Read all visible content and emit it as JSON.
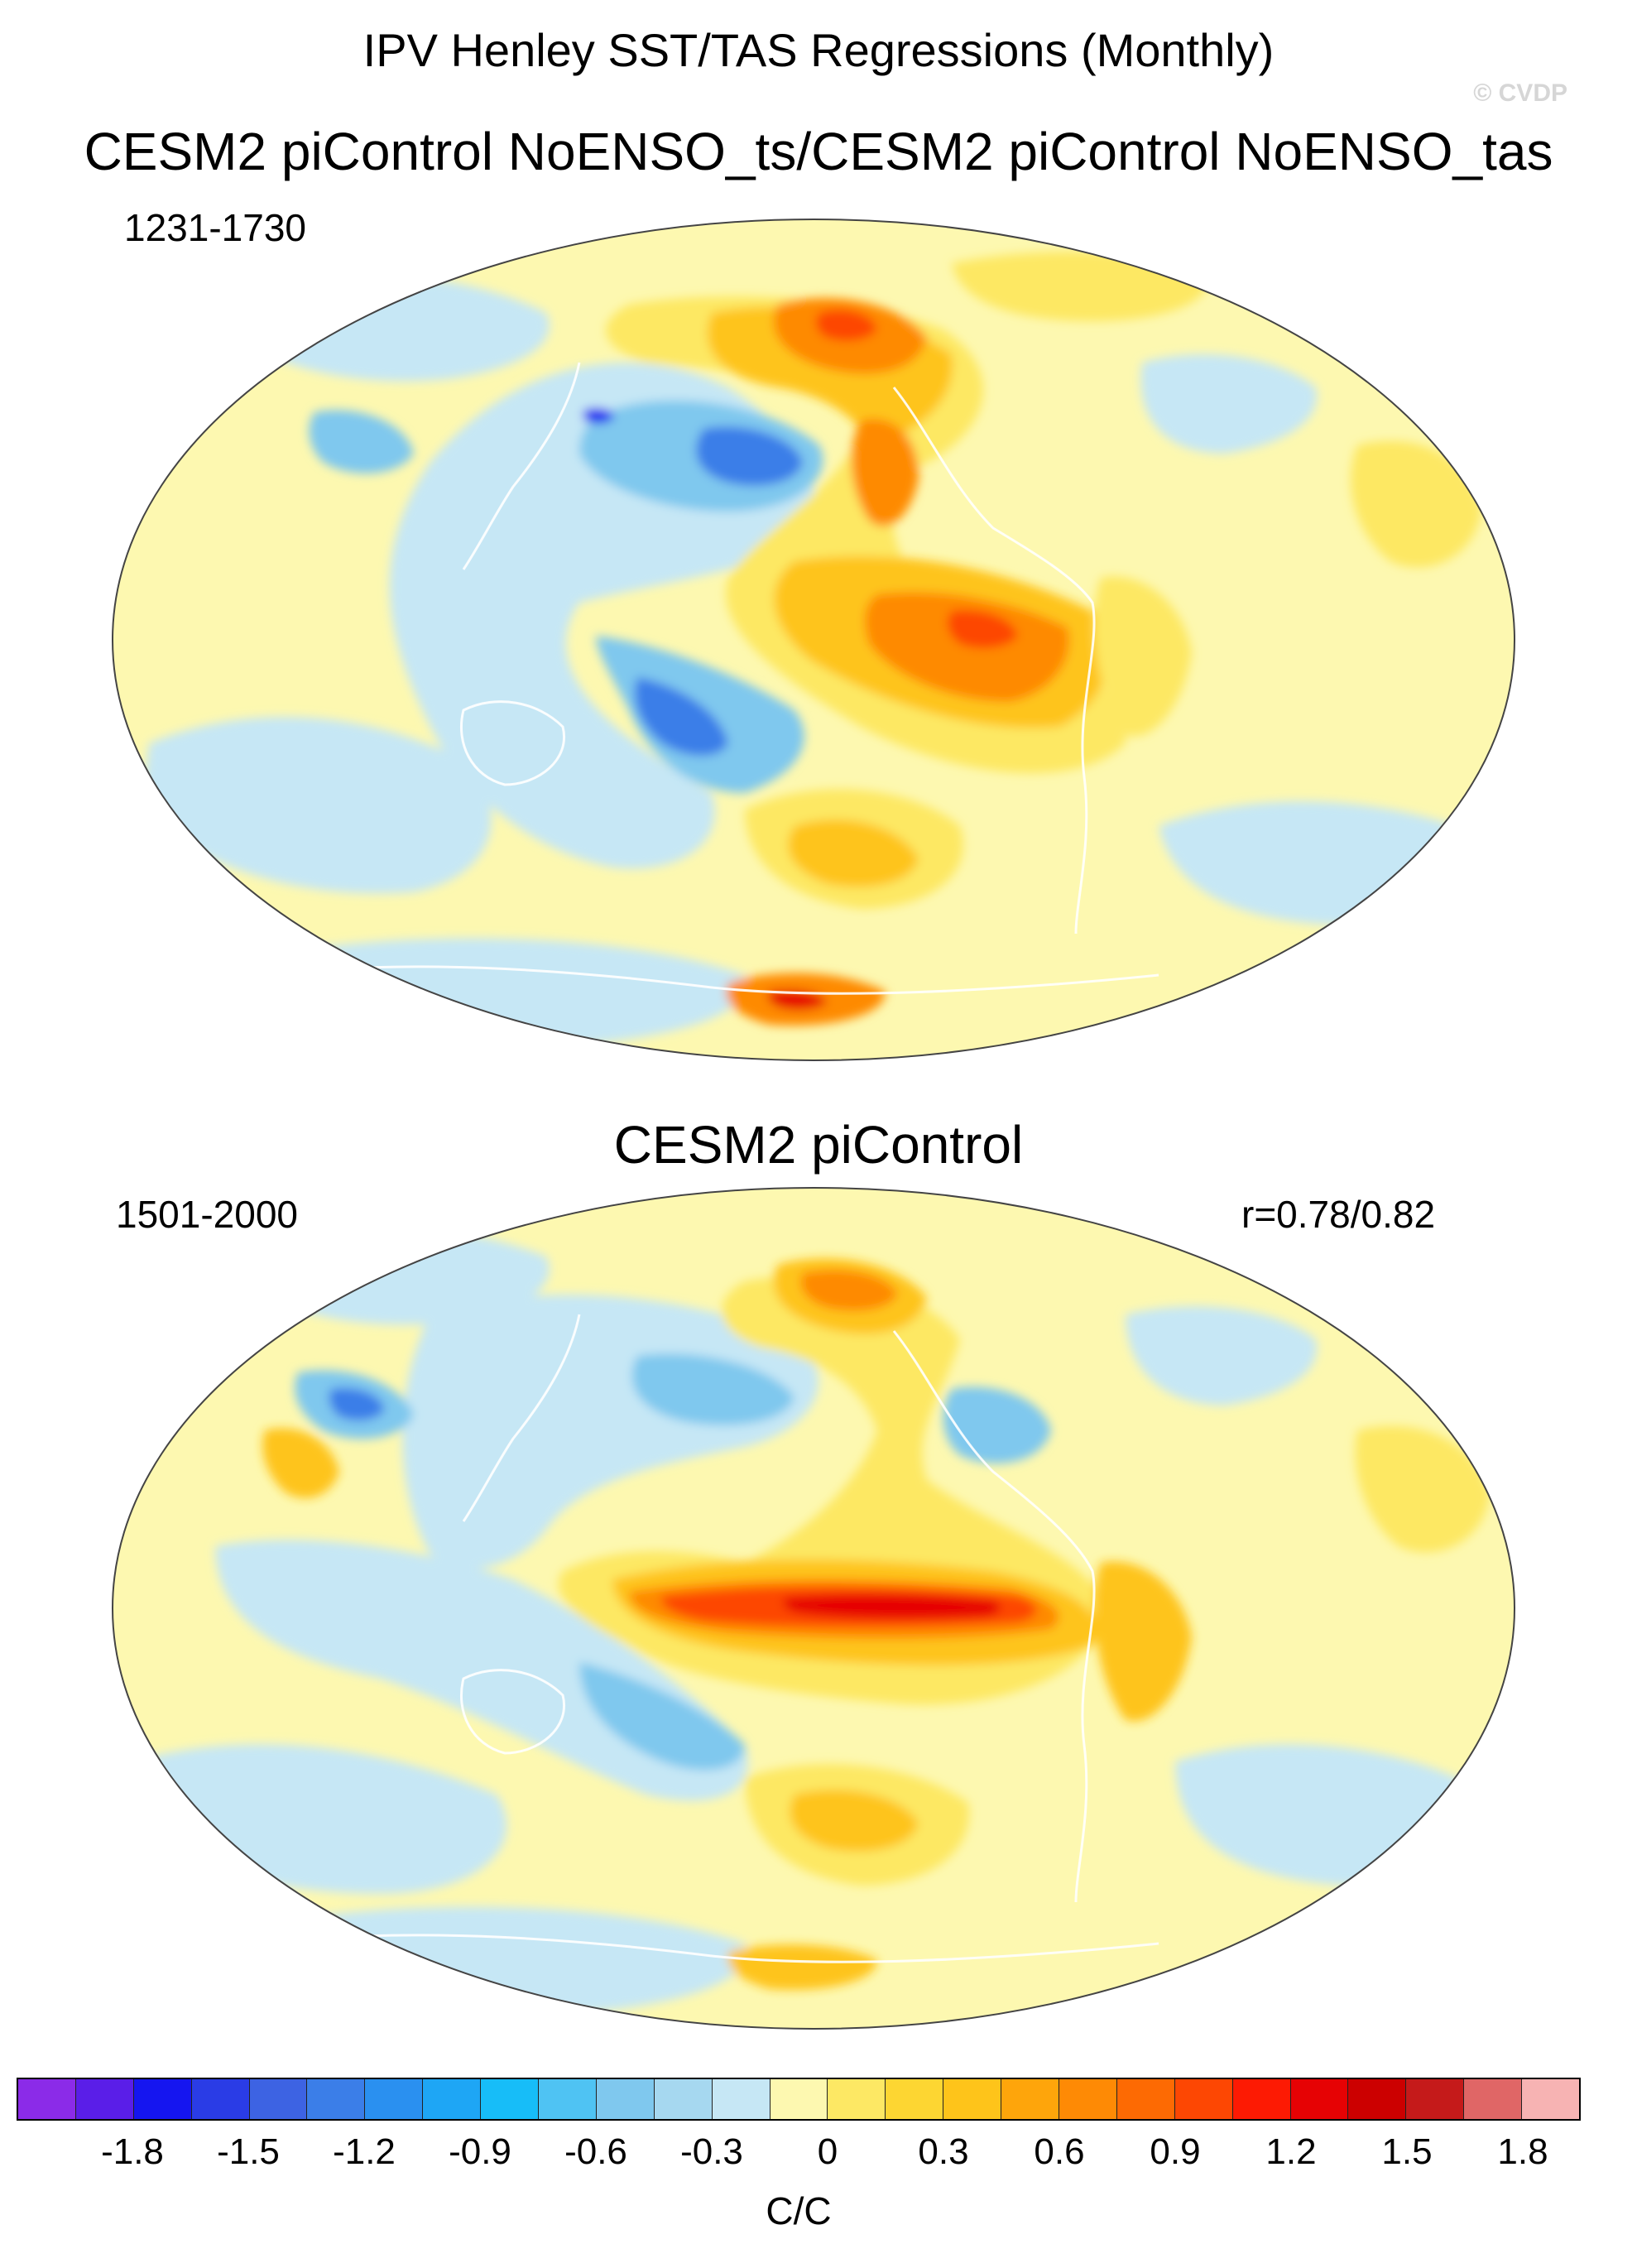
{
  "header": {
    "title": "IPV Henley SST/TAS Regressions (Monthly)",
    "watermark": "© CVDP"
  },
  "panels": [
    {
      "title": "CESM2 piControl NoENSO_ts/CESM2 piControl NoENSO_tas",
      "period": "1231-1730",
      "correlation": ""
    },
    {
      "title": "CESM2 piControl",
      "period": "1501-2000",
      "correlation": "r=0.78/0.82"
    }
  ],
  "colorbar": {
    "units": "C/C",
    "colors": [
      "#8b2be8",
      "#5a1ee8",
      "#1515f0",
      "#2a3ce6",
      "#3d63e3",
      "#3b7ee8",
      "#2a90f0",
      "#1ea6f5",
      "#17bdf8",
      "#4fc3f3",
      "#7fc8ee",
      "#a6d8f0",
      "#c6e7f5",
      "#fdf8b0",
      "#fde864",
      "#fdd632",
      "#fec41a",
      "#fea50b",
      "#fe8a05",
      "#fd6a03",
      "#fd4703",
      "#fd1a03",
      "#e60204",
      "#cc0000",
      "#c51a1a",
      "#e06666",
      "#f7b3b3"
    ],
    "tick_labels": [
      "-1.8",
      "-1.5",
      "-1.2",
      "-0.9",
      "-0.6",
      "-0.3",
      "0",
      "0.3",
      "0.6",
      "0.9",
      "1.2",
      "1.5",
      "1.8"
    ]
  },
  "map_fills": {
    "background_zero": "#fdf8b0",
    "light_blue": "#c6e7f5",
    "mid_blue": "#7fc8ee",
    "blue": "#3b7ee8",
    "deep_blue": "#1515f0",
    "light_orange": "#fde864",
    "orange": "#fec41a",
    "dark_orange": "#fe8a05",
    "red_orange": "#fd4703",
    "red": "#e60204"
  }
}
